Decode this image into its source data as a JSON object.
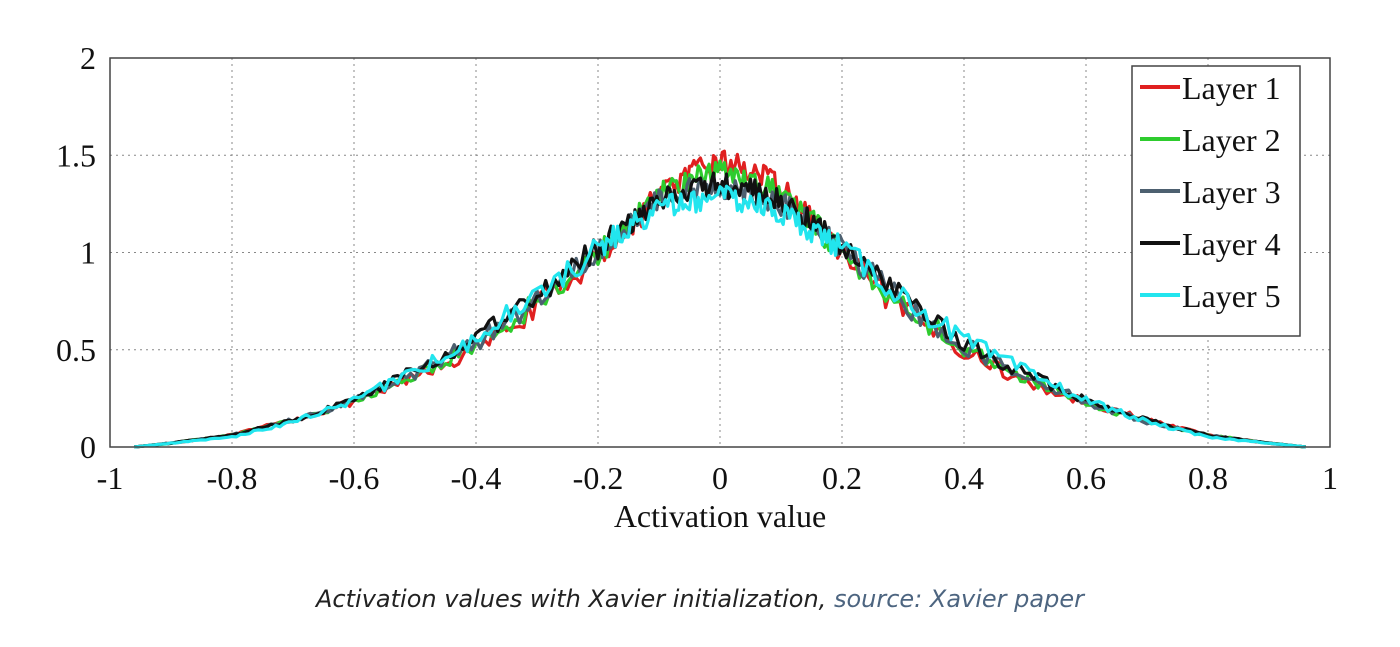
{
  "chart_data": {
    "type": "line",
    "title": "",
    "xlabel": "Activation value",
    "ylabel": "",
    "xlim": [
      -1,
      1
    ],
    "ylim": [
      0,
      2
    ],
    "x_ticks": [
      -1,
      -0.8,
      -0.6,
      -0.4,
      -0.2,
      0,
      0.2,
      0.4,
      0.6,
      0.8,
      1
    ],
    "x_tick_labels": [
      "-1",
      "-0.8",
      "-0.6",
      "-0.4",
      "-0.2",
      "0",
      "0.2",
      "0.4",
      "0.6",
      "0.8",
      "1"
    ],
    "y_ticks": [
      0,
      0.5,
      1,
      1.5,
      2
    ],
    "y_tick_labels": [
      "0",
      "0.5",
      "1",
      "1.5",
      "2"
    ],
    "grid": true,
    "legend_position": "top-right",
    "x": [
      -0.96,
      -0.9,
      -0.8,
      -0.7,
      -0.6,
      -0.5,
      -0.4,
      -0.3,
      -0.2,
      -0.15,
      -0.1,
      -0.05,
      0,
      0.05,
      0.1,
      0.15,
      0.2,
      0.3,
      0.4,
      0.5,
      0.6,
      0.7,
      0.8,
      0.9,
      0.96
    ],
    "series": [
      {
        "name": "Layer 1",
        "color": "#e02020",
        "values": [
          0.0,
          0.02,
          0.06,
          0.14,
          0.23,
          0.36,
          0.5,
          0.72,
          0.98,
          1.12,
          1.3,
          1.4,
          1.47,
          1.43,
          1.33,
          1.17,
          0.98,
          0.7,
          0.5,
          0.33,
          0.23,
          0.14,
          0.06,
          0.02,
          0.0
        ]
      },
      {
        "name": "Layer 2",
        "color": "#2ecc2e",
        "values": [
          0.0,
          0.02,
          0.06,
          0.14,
          0.23,
          0.37,
          0.52,
          0.74,
          1.0,
          1.14,
          1.3,
          1.38,
          1.42,
          1.38,
          1.3,
          1.16,
          1.0,
          0.72,
          0.51,
          0.36,
          0.22,
          0.13,
          0.06,
          0.02,
          0.0
        ]
      },
      {
        "name": "Layer 3",
        "color": "#4d6070",
        "values": [
          0.0,
          0.02,
          0.06,
          0.14,
          0.24,
          0.38,
          0.54,
          0.76,
          1.02,
          1.14,
          1.26,
          1.32,
          1.34,
          1.31,
          1.25,
          1.14,
          1.02,
          0.74,
          0.52,
          0.37,
          0.23,
          0.13,
          0.06,
          0.02,
          0.0
        ]
      },
      {
        "name": "Layer 4",
        "color": "#111111",
        "values": [
          0.0,
          0.02,
          0.06,
          0.14,
          0.24,
          0.39,
          0.55,
          0.77,
          1.03,
          1.15,
          1.27,
          1.33,
          1.35,
          1.32,
          1.26,
          1.15,
          1.03,
          0.76,
          0.53,
          0.38,
          0.24,
          0.14,
          0.06,
          0.02,
          0.0
        ]
      },
      {
        "name": "Layer 5",
        "color": "#22e5ee",
        "values": [
          0.0,
          0.02,
          0.05,
          0.13,
          0.24,
          0.39,
          0.56,
          0.78,
          1.02,
          1.13,
          1.22,
          1.26,
          1.28,
          1.26,
          1.2,
          1.12,
          1.02,
          0.77,
          0.55,
          0.39,
          0.24,
          0.13,
          0.05,
          0.02,
          0.0
        ]
      }
    ]
  },
  "caption": {
    "text": "Activation values with Xavier initialization, ",
    "source": "source: Xavier paper"
  }
}
